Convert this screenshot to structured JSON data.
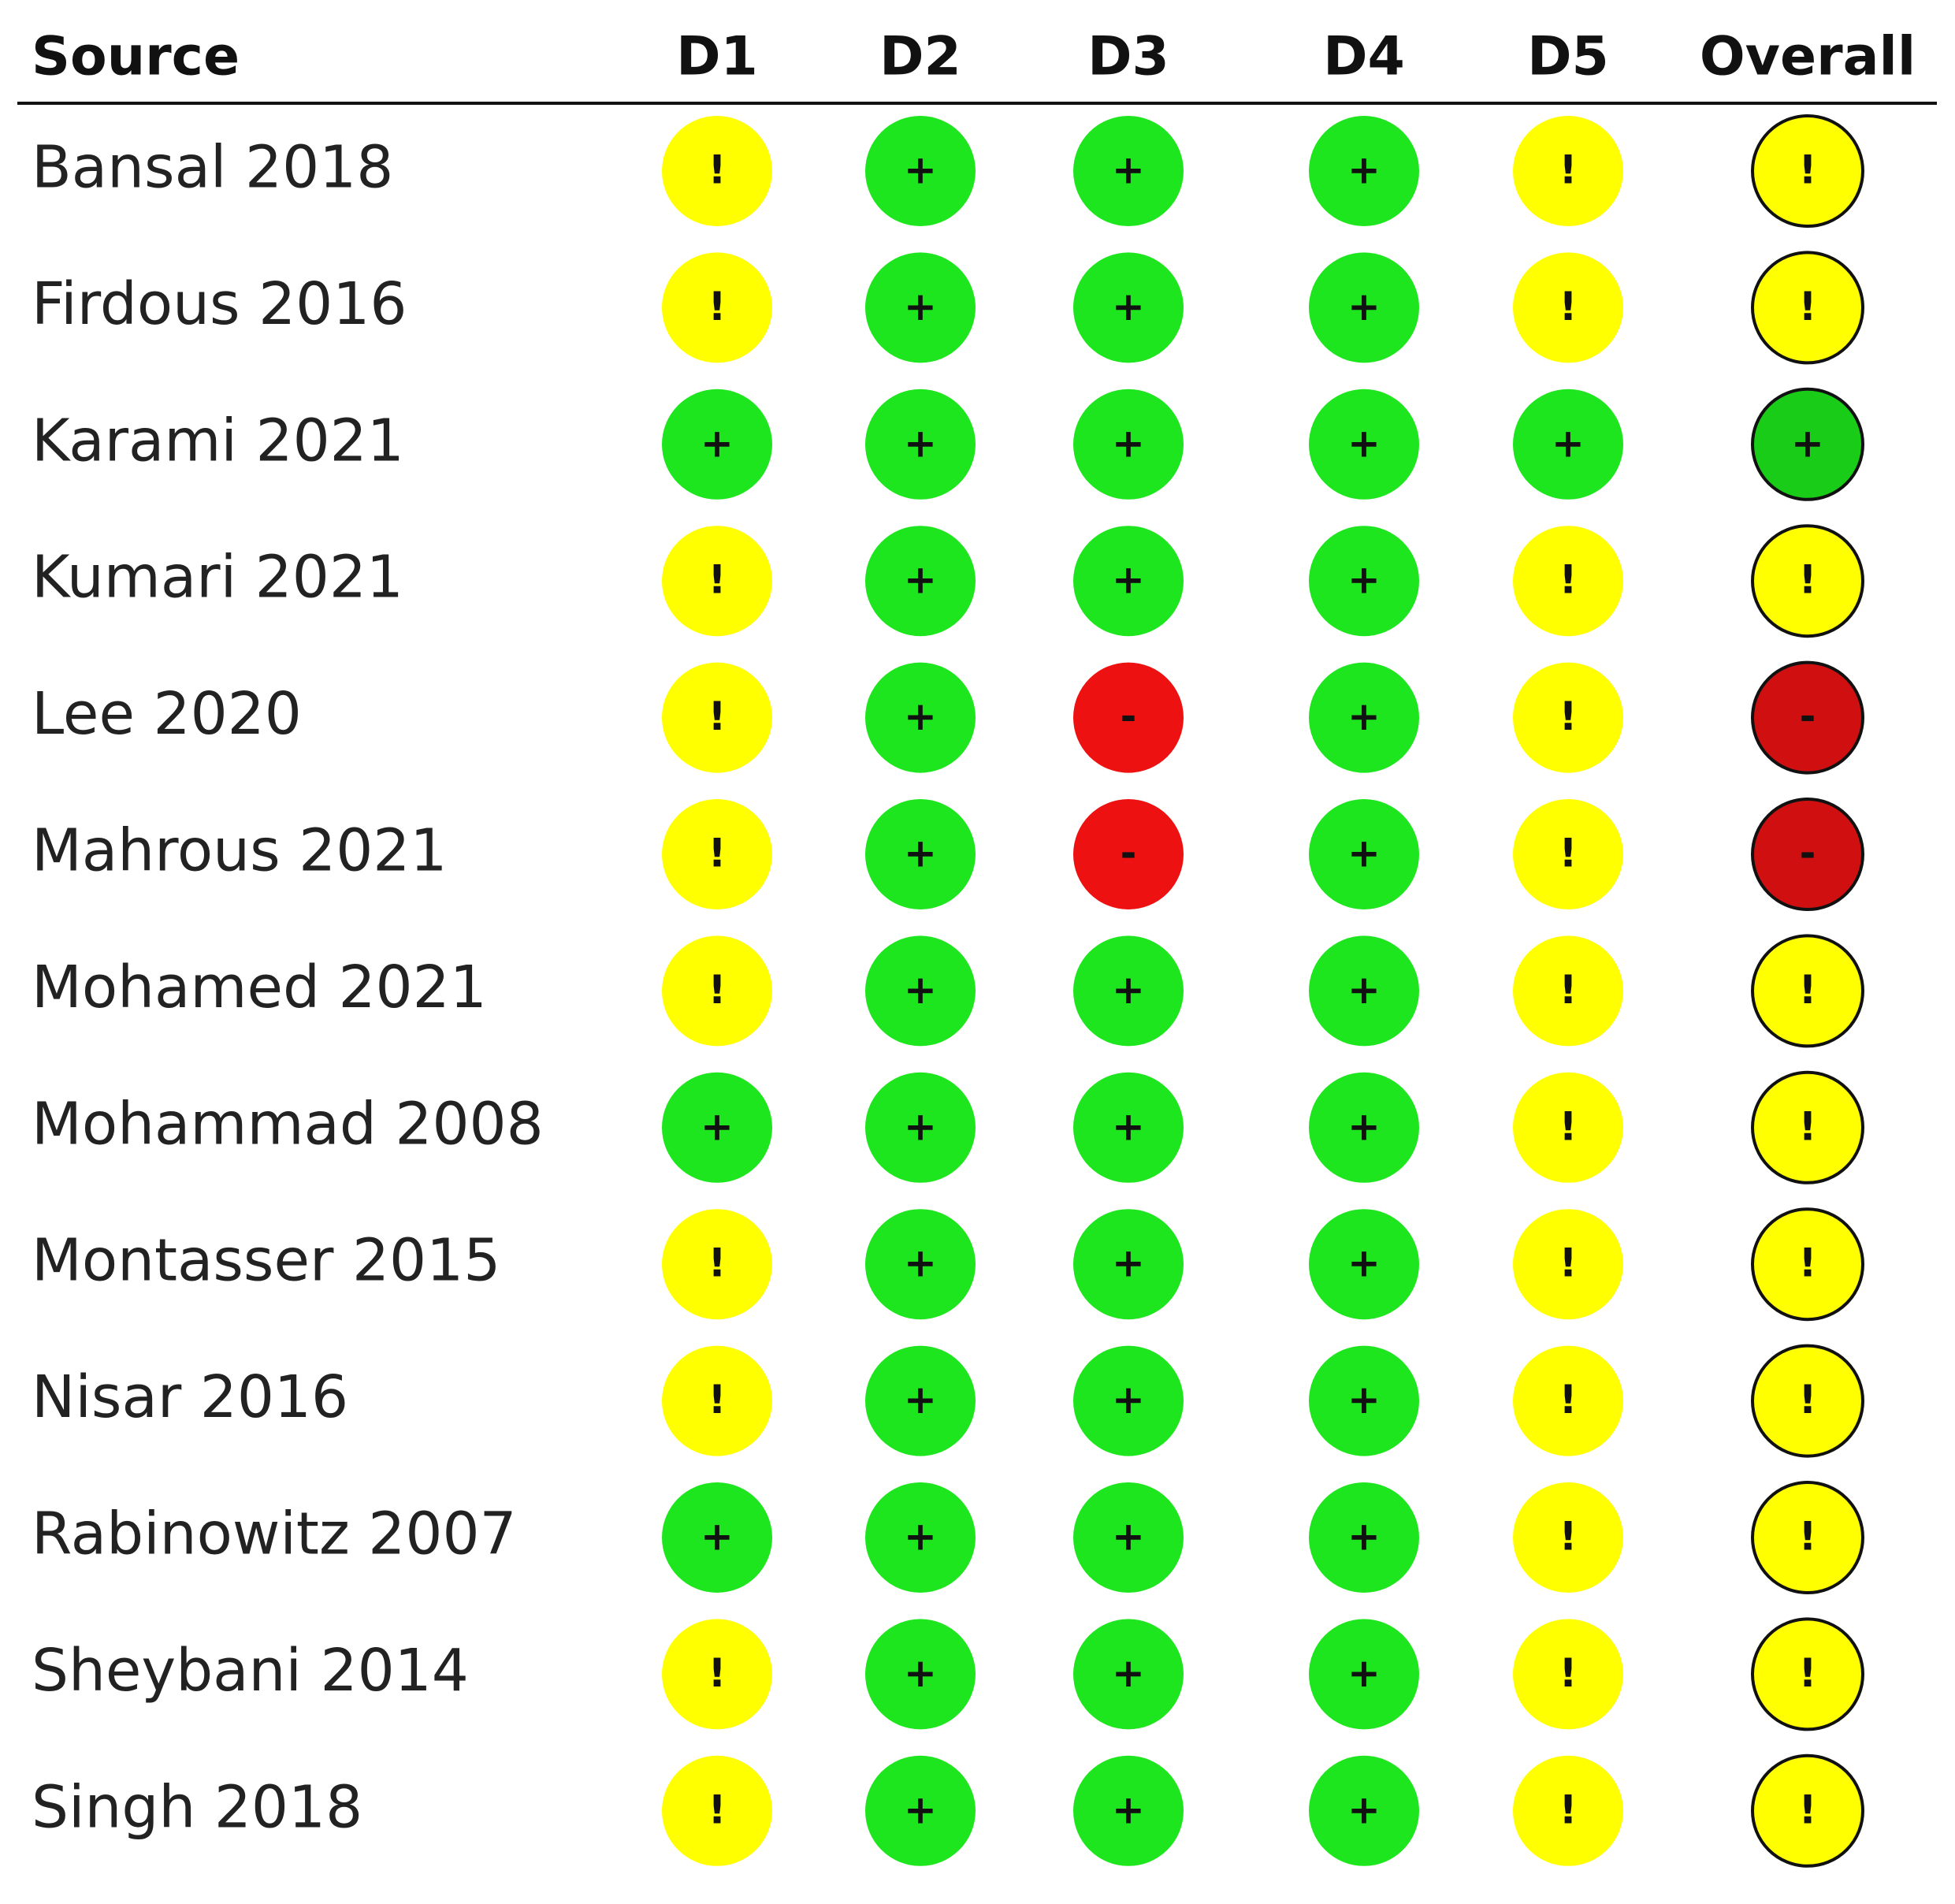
{
  "table": {
    "header": [
      "Source",
      "D1",
      "D2",
      "D3",
      "D4",
      "D5",
      "Overall"
    ],
    "rows": [
      [
        "Bansal 2018",
        "!",
        "+",
        "+",
        "+",
        "!",
        "!"
      ],
      [
        "Firdous 2016",
        "!",
        "+",
        "+",
        "+",
        "!",
        "!"
      ],
      [
        "Karami 2021",
        "+",
        "+",
        "+",
        "+",
        "+",
        "+"
      ],
      [
        "Kumari 2021",
        "!",
        "+",
        "+",
        "+",
        "!",
        "!"
      ],
      [
        "Lee 2020",
        "!",
        "+",
        "-",
        "+",
        "!",
        "-"
      ],
      [
        "Mahrous 2021",
        "!",
        "+",
        "-",
        "+",
        "!",
        "-"
      ],
      [
        "Mohamed 2021",
        "!",
        "+",
        "+",
        "+",
        "!",
        "!"
      ],
      [
        "Mohammad 2008",
        "+",
        "+",
        "+",
        "+",
        "!",
        "!"
      ],
      [
        "Montasser 2015",
        "!",
        "+",
        "+",
        "+",
        "!",
        "!"
      ],
      [
        "Nisar 2016",
        "!",
        "+",
        "+",
        "+",
        "!",
        "!"
      ],
      [
        "Rabinowitz 2007",
        "+",
        "+",
        "+",
        "+",
        "!",
        "!"
      ],
      [
        "Sheybani 2014",
        "!",
        "+",
        "+",
        "+",
        "!",
        "!"
      ],
      [
        "Singh 2018",
        "!",
        "+",
        "+",
        "+",
        "!",
        "!"
      ]
    ]
  }
}
